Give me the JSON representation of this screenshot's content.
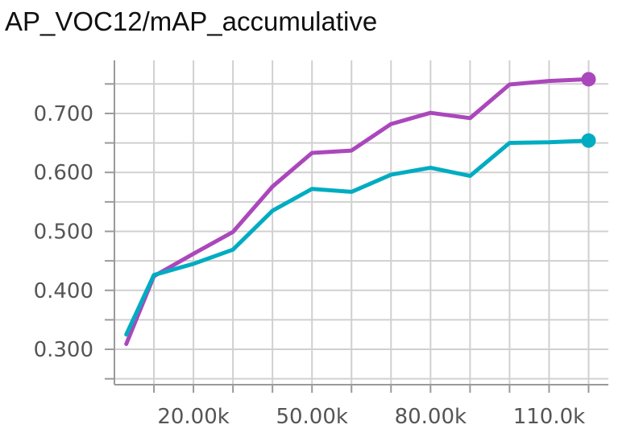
{
  "chart_data": {
    "type": "line",
    "title": "AP_VOC12/mAP_accumulative",
    "xlabel": "",
    "ylabel": "",
    "xlim": [
      0,
      125000
    ],
    "ylim": [
      0.24,
      0.79
    ],
    "x_ticks": [
      20000,
      50000,
      80000,
      110000
    ],
    "x_tick_labels": [
      "20.00k",
      "50.00k",
      "80.00k",
      "110.0k"
    ],
    "y_ticks": [
      0.3,
      0.4,
      0.5,
      0.6,
      0.7
    ],
    "y_tick_labels": [
      "0.300",
      "0.400",
      "0.500",
      "0.600",
      "0.700"
    ],
    "grid": true,
    "series": [
      {
        "color": "#ab47bc",
        "x": [
          3000,
          10000,
          20000,
          30000,
          40000,
          50000,
          60000,
          70000,
          80000,
          90000,
          100000,
          110000,
          120000
        ],
        "values": [
          0.309,
          0.424,
          0.462,
          0.499,
          0.576,
          0.633,
          0.637,
          0.682,
          0.701,
          0.692,
          0.749,
          0.755,
          0.758
        ]
      },
      {
        "color": "#00acc1",
        "x": [
          3000,
          10000,
          20000,
          30000,
          40000,
          50000,
          60000,
          70000,
          80000,
          90000,
          100000,
          110000,
          120000
        ],
        "values": [
          0.325,
          0.426,
          0.445,
          0.469,
          0.535,
          0.572,
          0.567,
          0.596,
          0.608,
          0.594,
          0.65,
          0.651,
          0.654
        ]
      }
    ]
  }
}
